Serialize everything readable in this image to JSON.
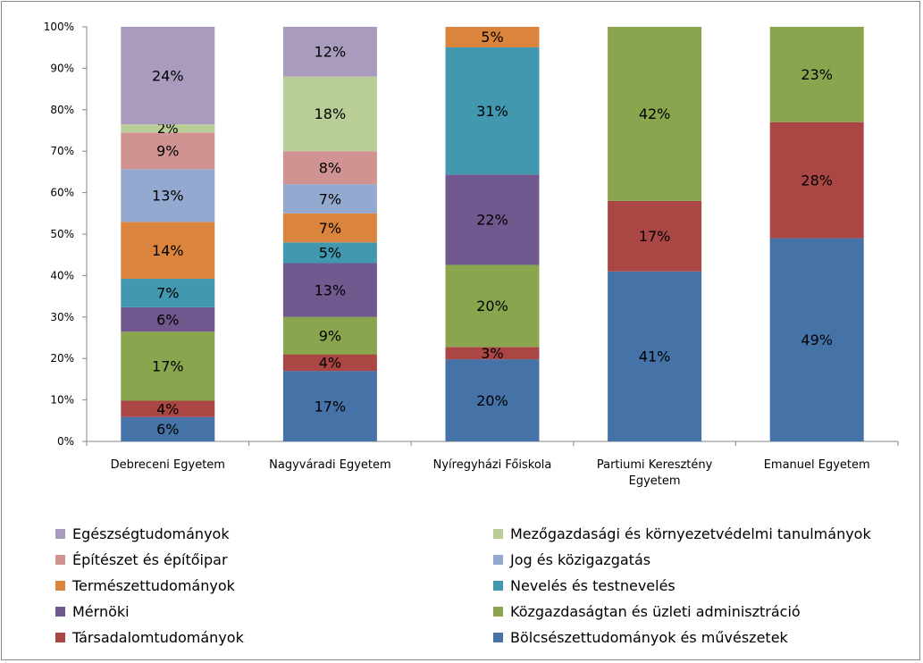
{
  "chart_data": {
    "type": "bar",
    "stacked": true,
    "percent": true,
    "ylim": [
      0,
      100
    ],
    "yticks": [
      "0%",
      "10%",
      "20%",
      "30%",
      "40%",
      "50%",
      "60%",
      "70%",
      "80%",
      "90%",
      "100%"
    ],
    "grid": false,
    "legend_position": "bottom",
    "categories": [
      [
        "Debreceni Egyetem"
      ],
      [
        "Nagyváradi Egyetem"
      ],
      [
        "Nyíregyházi Főiskola"
      ],
      [
        "Partiumi Keresztény",
        "Egyetem"
      ],
      [
        "Emanuel Egyetem"
      ]
    ],
    "series": [
      {
        "name": "Bölcsészettudományok és művészetek",
        "color": "#4572A7",
        "values": [
          6,
          17,
          20,
          41,
          49
        ],
        "labels": [
          "6%",
          "17%",
          "20%",
          "41%",
          "49%"
        ]
      },
      {
        "name": "Társadalomtudományok",
        "color": "#AA4643",
        "values": [
          4,
          4,
          3,
          17,
          28
        ],
        "labels": [
          "4%",
          "4%",
          "3%",
          "17%",
          "28%"
        ]
      },
      {
        "name": "Közgazdaságtan és üzleti adminisztráció",
        "color": "#89A54E",
        "values": [
          17,
          9,
          20,
          42,
          23
        ],
        "labels": [
          "17%",
          "9%",
          "20%",
          "42%",
          "23%"
        ]
      },
      {
        "name": "Mérnöki",
        "color": "#71588F",
        "values": [
          6,
          13,
          22,
          0,
          0
        ],
        "labels": [
          "6%",
          "13%",
          "22%",
          "",
          ""
        ]
      },
      {
        "name": "Nevelés és testnevelés",
        "color": "#4198AF",
        "values": [
          7,
          5,
          31,
          0,
          0
        ],
        "labels": [
          "7%",
          "5%",
          "31%",
          "",
          ""
        ]
      },
      {
        "name": "Természettudományok",
        "color": "#DB843D",
        "values": [
          14,
          7,
          5,
          0,
          0
        ],
        "labels": [
          "14%",
          "7%",
          "5%",
          "",
          ""
        ]
      },
      {
        "name": "Jog és közigazgatás",
        "color": "#93A9CF",
        "values": [
          13,
          7,
          0,
          0,
          0
        ],
        "labels": [
          "13%",
          "7%",
          "",
          "",
          ""
        ]
      },
      {
        "name": "Építészet és építőipar",
        "color": "#D19392",
        "values": [
          9,
          8,
          0,
          0,
          0
        ],
        "labels": [
          "9%",
          "8%",
          "",
          "",
          ""
        ]
      },
      {
        "name": "Mezőgazdasági és környezetvédelmi tanulmányok",
        "color": "#B9CD96",
        "values": [
          2,
          18,
          0,
          0,
          0
        ],
        "labels": [
          "2%",
          "18%",
          "",
          "",
          ""
        ]
      },
      {
        "name": "Egészségtudományok",
        "color": "#A99BBD",
        "values": [
          24,
          12,
          0,
          0,
          0
        ],
        "labels": [
          "24%",
          "12%",
          "",
          "",
          ""
        ]
      }
    ],
    "legend": [
      {
        "name": "Egészségtudományok",
        "color": "#A99BBD"
      },
      {
        "name": "Mezőgazdasági és környezetvédelmi tanulmányok",
        "color": "#B9CD96"
      },
      {
        "name": "Építészet és építőipar",
        "color": "#D19392"
      },
      {
        "name": "Jog és közigazgatás",
        "color": "#93A9CF"
      },
      {
        "name": "Természettudományok",
        "color": "#DB843D"
      },
      {
        "name": "Nevelés és testnevelés",
        "color": "#4198AF"
      },
      {
        "name": "Mérnöki",
        "color": "#71588F"
      },
      {
        "name": "Közgazdaságtan és üzleti adminisztráció",
        "color": "#89A54E"
      },
      {
        "name": "Társadalomtudományok",
        "color": "#AA4643"
      },
      {
        "name": "Bölcsészettudományok és művészetek",
        "color": "#4572A7"
      }
    ]
  }
}
